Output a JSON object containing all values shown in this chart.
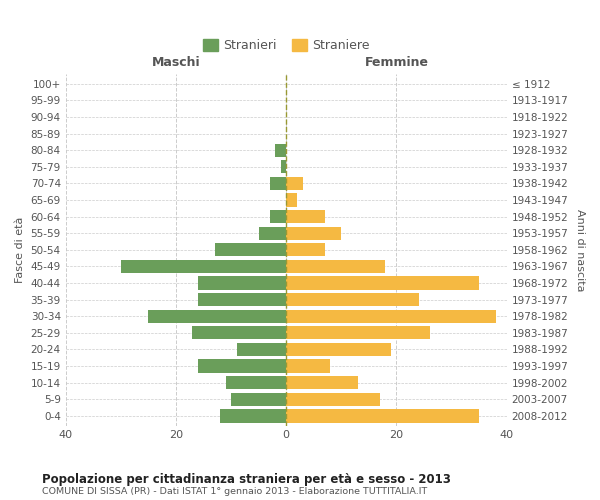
{
  "age_groups": [
    "0-4",
    "5-9",
    "10-14",
    "15-19",
    "20-24",
    "25-29",
    "30-34",
    "35-39",
    "40-44",
    "45-49",
    "50-54",
    "55-59",
    "60-64",
    "65-69",
    "70-74",
    "75-79",
    "80-84",
    "85-89",
    "90-94",
    "95-99",
    "100+"
  ],
  "birth_years": [
    "2008-2012",
    "2003-2007",
    "1998-2002",
    "1993-1997",
    "1988-1992",
    "1983-1987",
    "1978-1982",
    "1973-1977",
    "1968-1972",
    "1963-1967",
    "1958-1962",
    "1953-1957",
    "1948-1952",
    "1943-1947",
    "1938-1942",
    "1933-1937",
    "1928-1932",
    "1923-1927",
    "1918-1922",
    "1913-1917",
    "≤ 1912"
  ],
  "males": [
    12,
    10,
    11,
    16,
    9,
    17,
    25,
    16,
    16,
    30,
    13,
    5,
    3,
    0,
    3,
    1,
    2,
    0,
    0,
    0,
    0
  ],
  "females": [
    35,
    17,
    13,
    8,
    19,
    26,
    38,
    24,
    35,
    18,
    7,
    10,
    7,
    2,
    3,
    0,
    0,
    0,
    0,
    0,
    0
  ],
  "male_color": "#6a9e5a",
  "female_color": "#f5b942",
  "background_color": "#ffffff",
  "grid_color": "#cccccc",
  "title": "Popolazione per cittadinanza straniera per età e sesso - 2013",
  "subtitle": "COMUNE DI SISSA (PR) - Dati ISTAT 1° gennaio 2013 - Elaborazione TUTTITALIA.IT",
  "xlabel_left": "Maschi",
  "xlabel_right": "Femmine",
  "ylabel_left": "Fasce di età",
  "ylabel_right": "Anni di nascita",
  "legend_male": "Stranieri",
  "legend_female": "Straniere",
  "xlim": 40,
  "bar_height": 0.8,
  "text_color": "#555555",
  "title_color": "#222222",
  "axis_label_color": "#555555"
}
